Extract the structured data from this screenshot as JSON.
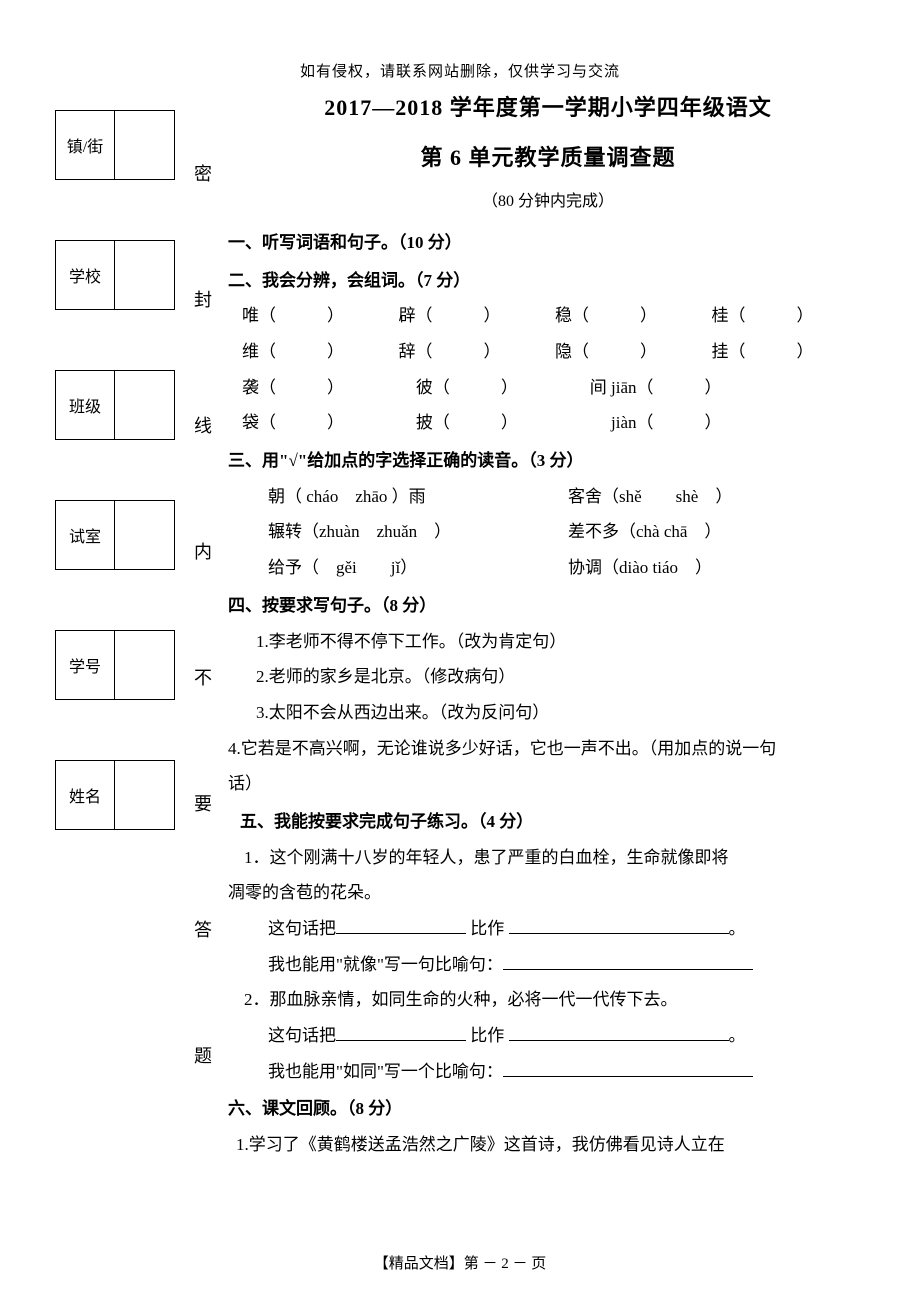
{
  "notice": "如有侵权，请联系网站删除，仅供学习与交流",
  "left_labels": [
    "镇/街",
    "学校",
    "班级",
    "试室",
    "学号",
    "姓名"
  ],
  "seal_chars": [
    "密",
    "封",
    "线",
    "内",
    "不",
    "要",
    "答",
    "题"
  ],
  "title_line1": "2017—2018 学年度第一学期小学四年级语文",
  "title_line2": "第 6 单元教学质量调查题",
  "timing": "（80 分钟内完成）",
  "s1_head": "一、听写词语和句子。（10 分）",
  "s2_head": "二、我会分辨，会组词。（7 分）",
  "s2_rows": [
    [
      {
        "ch": "唯",
        "tail": "（　　　）"
      },
      {
        "ch": "辟",
        "tail": "（　　　）"
      },
      {
        "ch": "稳",
        "tail": "（　　　）"
      },
      {
        "ch": "桂",
        "tail": "（　　　）"
      }
    ],
    [
      {
        "ch": "维",
        "tail": "（　　　）"
      },
      {
        "ch": "辞",
        "tail": "（　　　）"
      },
      {
        "ch": "隐",
        "tail": "（　　　）"
      },
      {
        "ch": "挂",
        "tail": "（　　　）"
      }
    ],
    [
      {
        "ch": "袭",
        "tail": "（　　　）"
      },
      {
        "ch": "彼",
        "tail": "（　　　）"
      },
      {
        "ch": "间 jiān",
        "tail": "（　　　）"
      }
    ],
    [
      {
        "ch": "袋",
        "tail": "（　　　）"
      },
      {
        "ch": "披",
        "tail": "（　　　）"
      },
      {
        "ch": "　 jiàn",
        "tail": "（　　　）"
      }
    ]
  ],
  "s3_head": "三、用\"√\"给加点的字选择正确的读音。（3 分）",
  "s3_items": [
    {
      "l": "朝（ cháo　zhāo ）雨",
      "r": "客舍（shě　　shè　）"
    },
    {
      "l": "辗转（zhuàn　zhuǎn　）",
      "r": "差不多（chà chā　）"
    },
    {
      "l": "给予（　gěi　　jǐ）",
      "r": "协调（diào tiáo　）"
    }
  ],
  "s4_head": "四、按要求写句子。（8 分）",
  "s4_items": [
    "1.李老师不得不停下工作。（改为肯定句）",
    "2.老师的家乡是北京。（修改病句）",
    "3.太阳不会从西边出来。（改为反问句）"
  ],
  "s4_item4_a": "4.它若是不高兴啊，无论谁说多少好话，它也一声不出。（用加点的说一句",
  "s4_item4_b": "话）",
  "s5_head": "五、我能按要求完成句子练习。（4 分）",
  "s5_q1a": "1．这个刚满十八岁的年轻人，患了严重的白血栓，生命就像即将",
  "s5_q1b": "凋零的含苞的花朵。",
  "s5_q1_line1_a": "这句话把",
  "s5_q1_line1_b": " 比作 ",
  "s5_q1_line2": "我也能用\"就像\"写一句比喻句：",
  "s5_q2a": "2．那血脉亲情，如同生命的火种，必将一代一代传下去。",
  "s5_q2_line1_a": "这句话把",
  "s5_q2_line1_b": " 比作 ",
  "s5_q2_line2": "我也能用\"如同\"写一个比喻句：",
  "s6_head": "六、课文回顾。（8 分）",
  "s6_item1": "1.学习了《黄鹤楼送孟浩然之广陵》这首诗，我仿佛看见诗人立在",
  "footer": "【精品文档】第 － 2 － 页",
  "colors": {
    "text": "#000000",
    "bg": "#ffffff"
  },
  "fontsize": {
    "body": 17,
    "title": 22,
    "notice": 15,
    "footer": 15
  }
}
